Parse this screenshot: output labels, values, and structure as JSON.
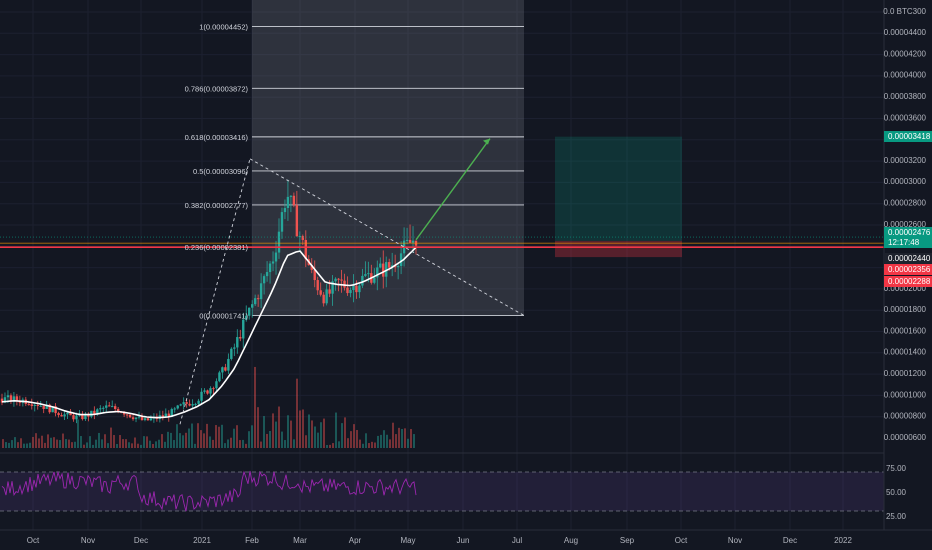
{
  "chart_data": {
    "type": "candlestick",
    "currency_label": "0.0 BTC",
    "currency_suffix": "300",
    "price_ticks": [
      "0.00004400",
      "0.00004200",
      "0.00004000",
      "0.00003800",
      "0.00003600",
      "0.00003200",
      "0.00003000",
      "0.00002800",
      "0.00002600",
      "0.00002000",
      "0.00001800",
      "0.00001600",
      "0.00001400",
      "0.00001200",
      "0.00001000",
      "0.00000800",
      "0.00000600"
    ],
    "x_ticks": [
      "Oct",
      "Nov",
      "Dec",
      "2021",
      "Feb",
      "Mar",
      "Apr",
      "May",
      "Jun",
      "Jul",
      "Aug",
      "Sep",
      "Oct",
      "Nov",
      "Dec",
      "2022"
    ],
    "fib_levels": [
      {
        "label": "1(0.00004452)",
        "value": 4.452e-05
      },
      {
        "label": "0.786(0.00003872)",
        "value": 3.872e-05
      },
      {
        "label": "0.618(0.00003416)",
        "value": 3.416e-05
      },
      {
        "label": "0.5(0.00003096)",
        "value": 3.096e-05
      },
      {
        "label": "0.382(0.00002777)",
        "value": 2.777e-05
      },
      {
        "label": "0.236(0.00002381)",
        "value": 2.381e-05
      },
      {
        "label": "0(0.00001741)",
        "value": 1.741e-05
      }
    ],
    "price_tags": [
      {
        "text": "0.00003418",
        "color": "#089981",
        "value": 3.418e-05
      },
      {
        "text": "0.00002476",
        "color": "#089981",
        "value": 2.476e-05
      },
      {
        "text": "12:17:48",
        "color": "#089981",
        "value": 2.476e-05
      },
      {
        "text": "0.00002440",
        "color": "#1e222d",
        "value": 2.44e-05
      },
      {
        "text": "0.00002356",
        "color": "#f23645",
        "value": 2.356e-05
      },
      {
        "text": "0.00002288",
        "color": "#f23645",
        "value": 2.288e-05
      }
    ],
    "rsi": {
      "ticks": [
        "75.00",
        "50.00",
        "25.00"
      ],
      "upper": 70,
      "lower": 30
    },
    "series": [
      {
        "name": "price",
        "close": [
          9.6e-06,
          9.5e-06,
          9.4e-06,
          9e-06,
          8.5e-06,
          8e-06,
          7.8e-06,
          8.2e-06,
          8.8e-06,
          8.6e-06,
          8e-06,
          7.5e-06,
          7.8e-06,
          8.2e-06,
          9e-06,
          9.5e-06,
          1.05e-05,
          1.2e-05,
          1.45e-05,
          1.75e-05,
          2e-05,
          2.3e-05,
          2.9e-05,
          2.5e-05,
          2.1e-05,
          1.9e-05,
          2.05e-05,
          2e-05,
          2.1e-05,
          2.15e-05,
          2.2e-05,
          2.35e-05,
          2.48e-05
        ]
      },
      {
        "name": "ma",
        "close": [
          9.3e-06,
          9.4e-06,
          9.3e-06,
          9.1e-06,
          8.8e-06,
          8.4e-06,
          8.1e-06,
          8.1e-06,
          8.3e-06,
          8.4e-06,
          8.2e-06,
          7.9e-06,
          7.8e-06,
          7.9e-06,
          8.3e-06,
          8.8e-06,
          9.5e-06,
          1.08e-05,
          1.25e-05,
          1.5e-05,
          1.75e-05,
          2e-05,
          2.3e-05,
          2.35e-05,
          2.2e-05,
          2.05e-05,
          2.03e-05,
          2.02e-05,
          2.06e-05,
          2.12e-05,
          2.18e-05,
          2.26e-05,
          2.38e-05
        ]
      }
    ]
  }
}
